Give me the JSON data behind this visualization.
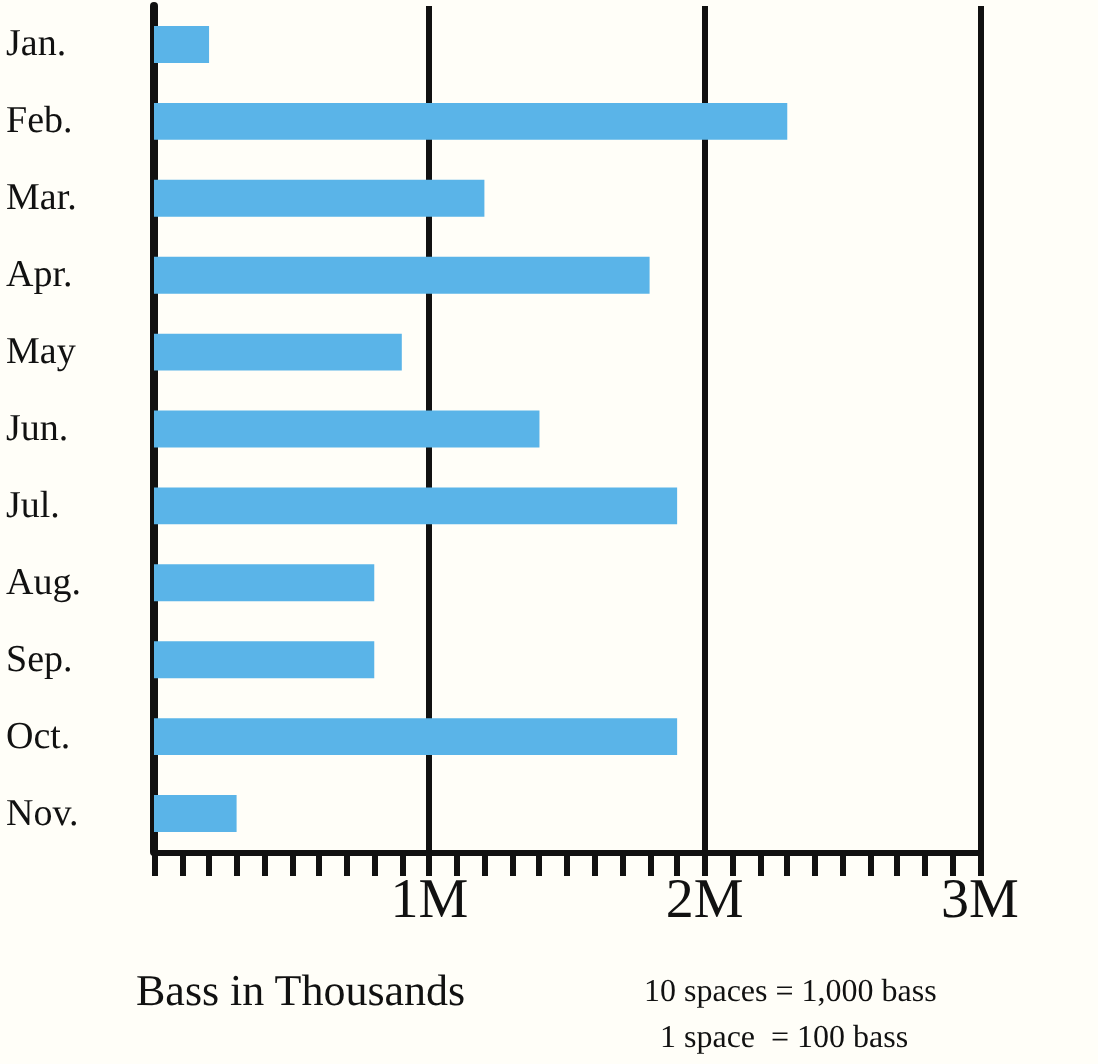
{
  "chart_data": {
    "type": "bar",
    "orientation": "horizontal",
    "categories": [
      "Jan.",
      "Feb.",
      "Mar.",
      "Apr.",
      "May",
      "Jun.",
      "Jul.",
      "Aug.",
      "Sep.",
      "Oct.",
      "Nov."
    ],
    "values": [
      0.2,
      2.3,
      1.2,
      1.8,
      0.9,
      1.4,
      1.9,
      0.8,
      0.8,
      1.9,
      0.3
    ],
    "color": "#5ab4e8",
    "xlabel": "Bass in Thousands",
    "xlim": [
      0,
      3
    ],
    "xticks": [
      {
        "value": 0,
        "label": null
      },
      {
        "value": 0.1,
        "label": null
      },
      {
        "value": 0.2,
        "label": null
      },
      {
        "value": 0.3,
        "label": null
      },
      {
        "value": 0.4,
        "label": null
      },
      {
        "value": 0.5,
        "label": null
      },
      {
        "value": 0.6,
        "label": null
      },
      {
        "value": 0.7,
        "label": null
      },
      {
        "value": 0.8,
        "label": null
      },
      {
        "value": 0.9,
        "label": null
      },
      {
        "value": 1,
        "label": "1M"
      },
      {
        "value": 1.1,
        "label": null
      },
      {
        "value": 1.2,
        "label": null
      },
      {
        "value": 1.3,
        "label": null
      },
      {
        "value": 1.4,
        "label": null
      },
      {
        "value": 1.5,
        "label": null
      },
      {
        "value": 1.6,
        "label": null
      },
      {
        "value": 1.7,
        "label": null
      },
      {
        "value": 1.8,
        "label": null
      },
      {
        "value": 1.9,
        "label": null
      },
      {
        "value": 2,
        "label": "2M"
      },
      {
        "value": 2.1,
        "label": null
      },
      {
        "value": 2.2,
        "label": null
      },
      {
        "value": 2.3,
        "label": null
      },
      {
        "value": 2.4,
        "label": null
      },
      {
        "value": 2.5,
        "label": null
      },
      {
        "value": 2.6,
        "label": null
      },
      {
        "value": 2.7,
        "label": null
      },
      {
        "value": 2.8,
        "label": null
      },
      {
        "value": 2.9,
        "label": null
      },
      {
        "value": 3,
        "label": "3M"
      }
    ],
    "grid": "x",
    "annotations": [
      "10 spaces = 1,000 bass",
      "1 space  = 100 bass"
    ]
  }
}
